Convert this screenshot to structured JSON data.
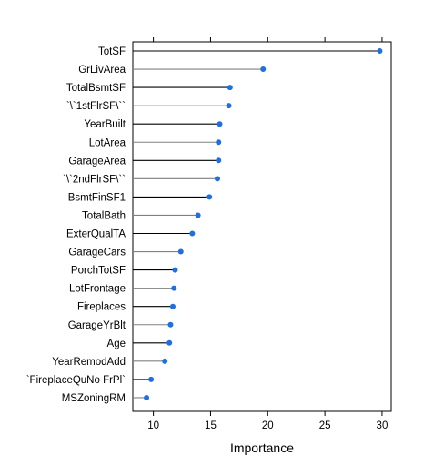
{
  "chart_data": {
    "type": "lollipop",
    "categories": [
      "TotSF",
      "GrLivArea",
      "TotalBsmtSF",
      "`\\`1stFlrSF\\``",
      "YearBuilt",
      "LotArea",
      "GarageArea",
      "`\\`2ndFlrSF\\``",
      "BsmtFinSF1",
      "TotalBath",
      "ExterQualTA",
      "GarageCars",
      "PorchTotSF",
      "LotFrontage",
      "Fireplaces",
      "GarageYrBlt",
      "Age",
      "YearRemodAdd",
      "`FireplaceQuNo FrPl`",
      "MSZoningRM"
    ],
    "values": [
      29.8,
      19.6,
      16.7,
      16.6,
      15.8,
      15.7,
      15.7,
      15.6,
      14.9,
      13.9,
      13.4,
      12.4,
      11.9,
      11.8,
      11.7,
      11.5,
      11.4,
      11.0,
      9.8,
      9.4
    ],
    "xlabel": "Importance",
    "xlim": [
      8.2,
      30.8
    ],
    "xticks": [
      10,
      15,
      20,
      25,
      30
    ],
    "grid": false,
    "colors": {
      "point": "#1f6fe0",
      "stem_dark": "#000000",
      "stem_light": "#808080",
      "frame": "#000000"
    }
  }
}
